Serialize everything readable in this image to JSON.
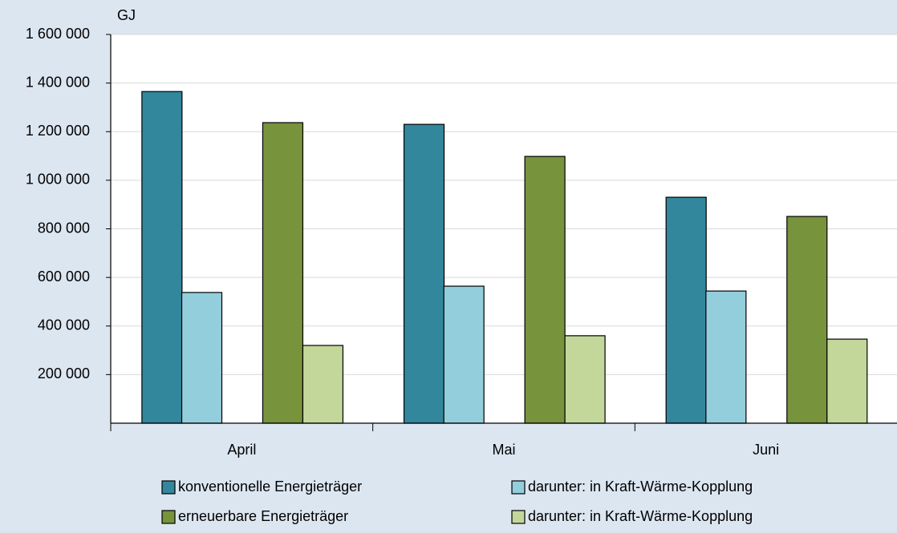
{
  "chart_data": {
    "type": "bar",
    "y_label": "GJ",
    "categories": [
      "April",
      "Mai",
      "Juni"
    ],
    "series": [
      {
        "name": "konventionelle Energieträger",
        "color": "#32879d",
        "values": [
          1365000,
          1230000,
          930000
        ]
      },
      {
        "name": "darunter: in Kraft-Wärme-Kopplung",
        "color": "#93cedd",
        "values": [
          538000,
          564000,
          544000
        ]
      },
      {
        "name": "erneuerbare Energieträger",
        "color": "#77933c",
        "values": [
          1237000,
          1098000,
          851000
        ]
      },
      {
        "name": "darunter: in Kraft-Wärme-Kopplung",
        "color": "#c4d79b",
        "values": [
          320000,
          360000,
          346000
        ]
      }
    ],
    "ylim": [
      0,
      1600000
    ],
    "yticks": [
      {
        "value": 200000,
        "label": "200 000"
      },
      {
        "value": 400000,
        "label": "400 000"
      },
      {
        "value": 600000,
        "label": "600 000"
      },
      {
        "value": 800000,
        "label": "800 000"
      },
      {
        "value": 1000000,
        "label": "1 000 000"
      },
      {
        "value": 1200000,
        "label": "1 200 000"
      },
      {
        "value": 1400000,
        "label": "1 400 000"
      },
      {
        "value": 1600000,
        "label": "1 600 000"
      }
    ],
    "grid": true
  }
}
